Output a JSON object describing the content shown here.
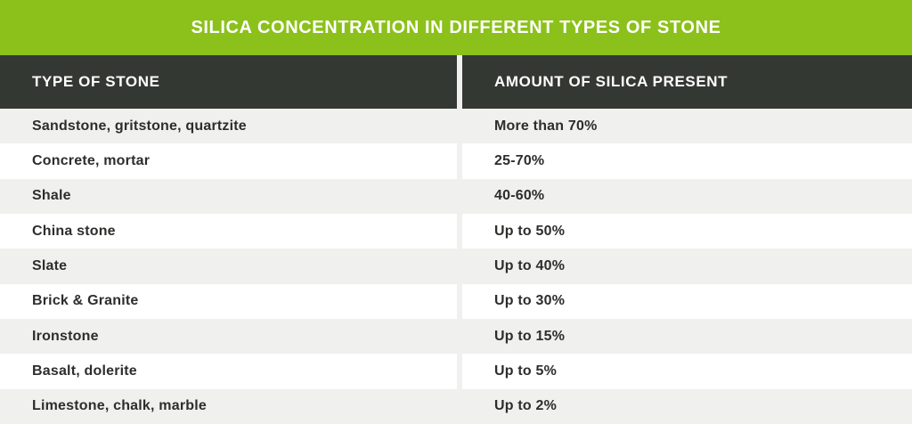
{
  "title": "SILICA CONCENTRATION IN DIFFERENT TYPES OF STONE",
  "table": {
    "columns": [
      "TYPE OF STONE",
      "AMOUNT OF SILICA PRESENT"
    ],
    "rows": [
      {
        "stone": "Sandstone, gritstone, quartzite",
        "amount": "More than 70%"
      },
      {
        "stone": "Concrete, mortar",
        "amount": "25-70%"
      },
      {
        "stone": "Shale",
        "amount": "40-60%"
      },
      {
        "stone": "China stone",
        "amount": "Up to 50%"
      },
      {
        "stone": "Slate",
        "amount": "Up to 40%"
      },
      {
        "stone": "Brick & Granite",
        "amount": "Up to 30%"
      },
      {
        "stone": "Ironstone",
        "amount": "Up to 15%"
      },
      {
        "stone": "Basalt, dolerite",
        "amount": "Up to 5%"
      },
      {
        "stone": "Limestone, chalk, marble",
        "amount": "Up to 2%"
      }
    ]
  },
  "colors": {
    "accent_green": "#8bc11a",
    "header_dark": "#343832",
    "row_gray": "#f0f0ef",
    "row_white": "#ffffff",
    "text_dark": "#2d2d2b",
    "text_light": "#ffffff"
  },
  "chart_data": {
    "type": "table",
    "title": "SILICA CONCENTRATION IN DIFFERENT TYPES OF STONE",
    "columns": [
      "TYPE OF STONE",
      "AMOUNT OF SILICA PRESENT"
    ],
    "rows": [
      [
        "Sandstone, gritstone, quartzite",
        "More than 70%"
      ],
      [
        "Concrete, mortar",
        "25-70%"
      ],
      [
        "Shale",
        "40-60%"
      ],
      [
        "China stone",
        "Up to 50%"
      ],
      [
        "Slate",
        "Up to 40%"
      ],
      [
        "Brick & Granite",
        "Up to 30%"
      ],
      [
        "Ironstone",
        "Up to 15%"
      ],
      [
        "Basalt, dolerite",
        "Up to 5%"
      ],
      [
        "Limestone, chalk, marble",
        "Up to 2%"
      ]
    ]
  }
}
